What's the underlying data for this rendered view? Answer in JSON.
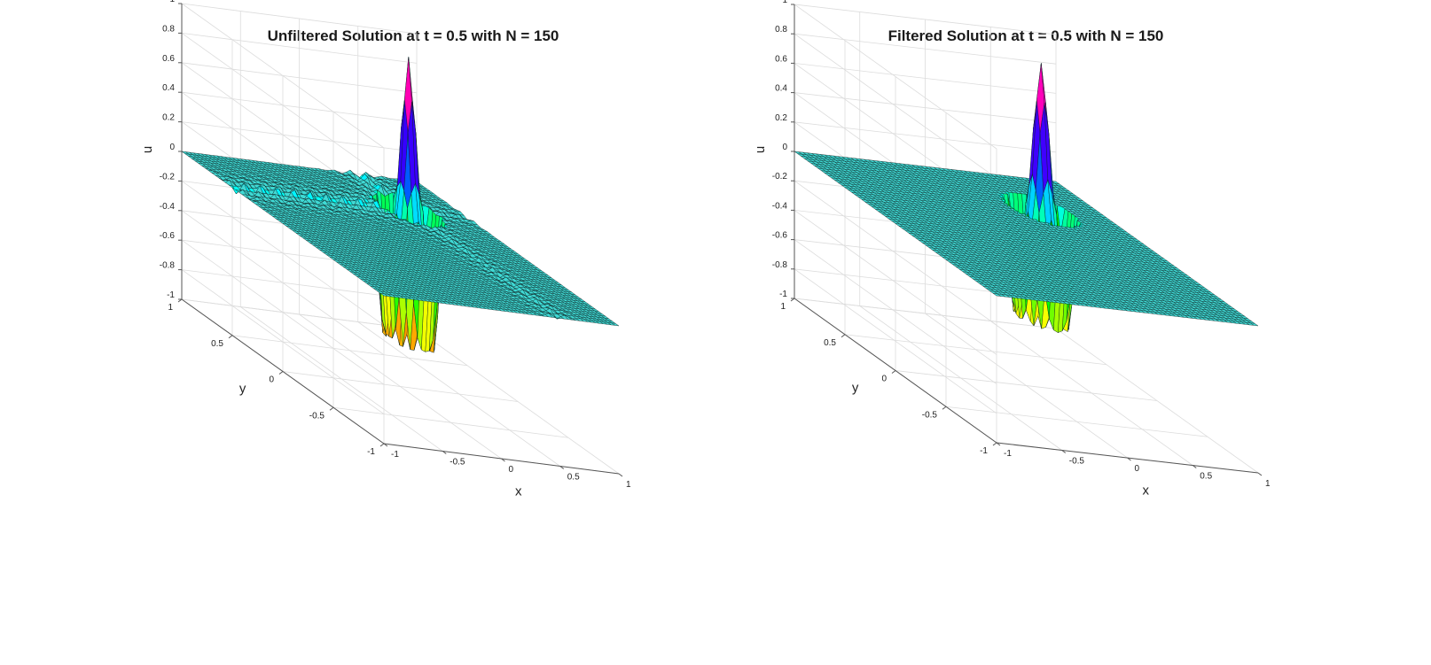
{
  "chart_data": [
    {
      "type": "surface",
      "title": "Unfiltered Solution at t = 0.5 with N = 150",
      "xlabel": "x",
      "ylabel": "y",
      "zlabel": "u",
      "xlim": [
        -1,
        1
      ],
      "ylim": [
        -1,
        1
      ],
      "zlim": [
        -1,
        1
      ],
      "xticks": [
        "-1",
        "-0.5",
        "0",
        "0.5",
        "1"
      ],
      "yticks": [
        "-1",
        "-0.5",
        "0",
        "0.5",
        "1"
      ],
      "zticks": [
        "-1",
        "-0.8",
        "-0.6",
        "-0.4",
        "-0.2",
        "0",
        "0.2",
        "0.4",
        "0.6",
        "0.8",
        "1"
      ],
      "grid": true,
      "colormap": "hsv",
      "peak": {
        "x": 0.5,
        "y": 0.5,
        "u": 1.0,
        "radius": 0.22
      },
      "trough": {
        "x": 0.5,
        "y": 0.5,
        "u": -1.0,
        "radius": 0.22
      },
      "oscillations": true
    },
    {
      "type": "surface",
      "title": "Filtered Solution at t = 0.5 with N = 150",
      "xlabel": "x",
      "ylabel": "y",
      "zlabel": "u",
      "xlim": [
        -1,
        1
      ],
      "ylim": [
        -1,
        1
      ],
      "zlim": [
        -1,
        1
      ],
      "xticks": [
        "-1",
        "-0.5",
        "0",
        "0.5",
        "1"
      ],
      "yticks": [
        "-1",
        "-0.5",
        "0",
        "0.5",
        "1"
      ],
      "zticks": [
        "-1",
        "-0.8",
        "-0.6",
        "-0.4",
        "-0.2",
        "0",
        "0.2",
        "0.4",
        "0.6",
        "0.8",
        "1"
      ],
      "grid": true,
      "colormap": "hsv",
      "peak": {
        "x": 0.5,
        "y": 0.5,
        "u": 1.0,
        "radius": 0.22
      },
      "trough": {
        "x": 0.5,
        "y": 0.5,
        "u": -0.85,
        "radius": 0.22
      },
      "oscillations": false
    }
  ],
  "colors": {
    "plane": "#3fd9d4",
    "plane_mesh": "#0b2222",
    "grid": "#dcdcdc",
    "axis": "#555555"
  }
}
